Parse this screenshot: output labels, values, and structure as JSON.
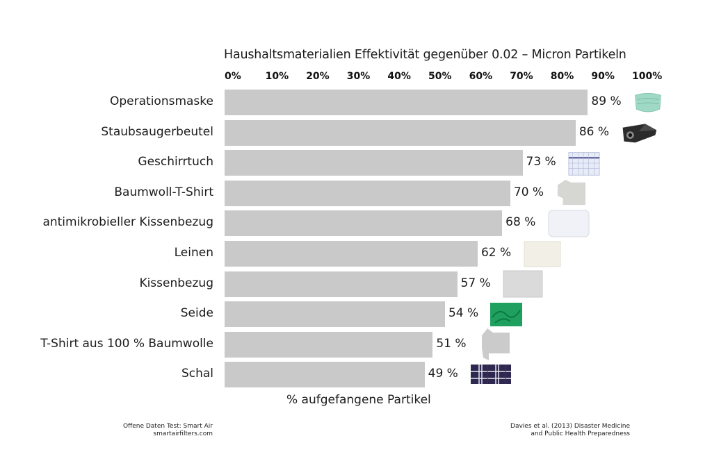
{
  "chart_data": {
    "type": "bar",
    "orientation": "horizontal",
    "title": "Haushaltsmaterialien Effektivität gegenüber 0.02 – Micron Partikeln",
    "xlabel": "% aufgefangene Partikel",
    "ylabel": "",
    "xlim": [
      0,
      100
    ],
    "x_ticks": [
      "0%",
      "10%",
      "20%",
      "30%",
      "40%",
      "50%",
      "60%",
      "70%",
      "80%",
      "90%",
      "100%"
    ],
    "x_tick_position": "top",
    "grid": false,
    "bar_color": "#c9c9c9",
    "categories": [
      "Operationsmaske",
      "Staubsaugerbeutel",
      "Geschirrtuch",
      "Baumwoll-T-Shirt",
      "antimikrobieller Kissenbezug",
      "Leinen",
      "Kissenbezug",
      "Seide",
      "T-Shirt aus 100 % Baumwolle",
      "Schal"
    ],
    "values": [
      89,
      86,
      73,
      70,
      68,
      62,
      57,
      54,
      51,
      49
    ],
    "data_labels": [
      "89 %",
      "86 %",
      "73 %",
      "70 %",
      "68 %",
      "62 %",
      "57 %",
      "54 %",
      "51 %",
      "49 %"
    ],
    "item_icons": [
      "surgical-mask-icon",
      "vacuum-bag-icon",
      "tea-towel-icon",
      "cotton-tshirt-icon",
      "pillow-icon",
      "linen-icon",
      "pillowcase-icon",
      "silk-icon",
      "tshirt-icon",
      "scarf-icon"
    ]
  },
  "sources": {
    "left_line1": "Offene Daten Test: Smart Air",
    "left_line2": "smartairfilters.com",
    "right_line1": "Davies et al. (2013) Disaster Medicine",
    "right_line2": "and Public Health Preparedness"
  }
}
